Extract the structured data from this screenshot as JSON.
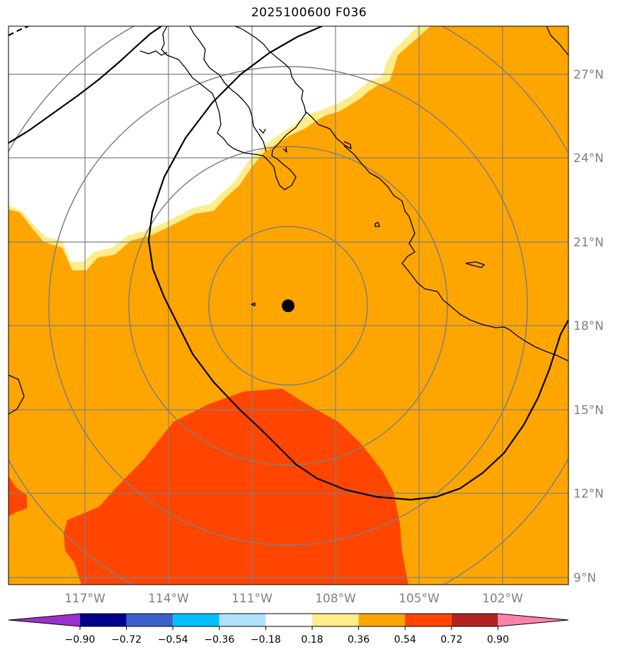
{
  "title": "2025100600 F036",
  "map": {
    "lon_range": [
      -119,
      -100
    ],
    "lat_range": [
      8.7,
      28.6
    ],
    "lon_ticks": [
      {
        "value": -117,
        "label": "117°W"
      },
      {
        "value": -114,
        "label": "114°W"
      },
      {
        "value": -111,
        "label": "111°W"
      },
      {
        "value": -108,
        "label": "108°W"
      },
      {
        "value": -105,
        "label": "105°W"
      },
      {
        "value": -102,
        "label": "102°W"
      }
    ],
    "lat_ticks": [
      {
        "value": 27,
        "label": "27°N"
      },
      {
        "value": 24,
        "label": "24°N"
      },
      {
        "value": 21,
        "label": "21°N"
      },
      {
        "value": 18,
        "label": "18°N"
      },
      {
        "value": 15,
        "label": "15°N"
      },
      {
        "value": 12,
        "label": "12°N"
      },
      {
        "value": 9,
        "label": "9°N"
      }
    ],
    "storm_center": {
      "lon": -109.3,
      "lat": 18.7
    },
    "colors": {
      "orange_fill": "#FFA500",
      "red_fill": "#FF4500",
      "yellow_fill": "#FFEC8B",
      "grid": "#808080",
      "coast": "#000000"
    }
  },
  "colorbar": {
    "colors": [
      "#9932CC",
      "#00008B",
      "#3A5FCD",
      "#00BFFF",
      "#B0E2FF",
      "#FFFFFF",
      "#FFEC8B",
      "#FFA500",
      "#FF4500",
      "#B22222",
      "#FF82AB"
    ],
    "labels": [
      "−0.90",
      "−0.72",
      "−0.54",
      "−0.36",
      "−0.18",
      "0.18",
      "0.36",
      "0.54",
      "0.72",
      "0.90"
    ]
  }
}
